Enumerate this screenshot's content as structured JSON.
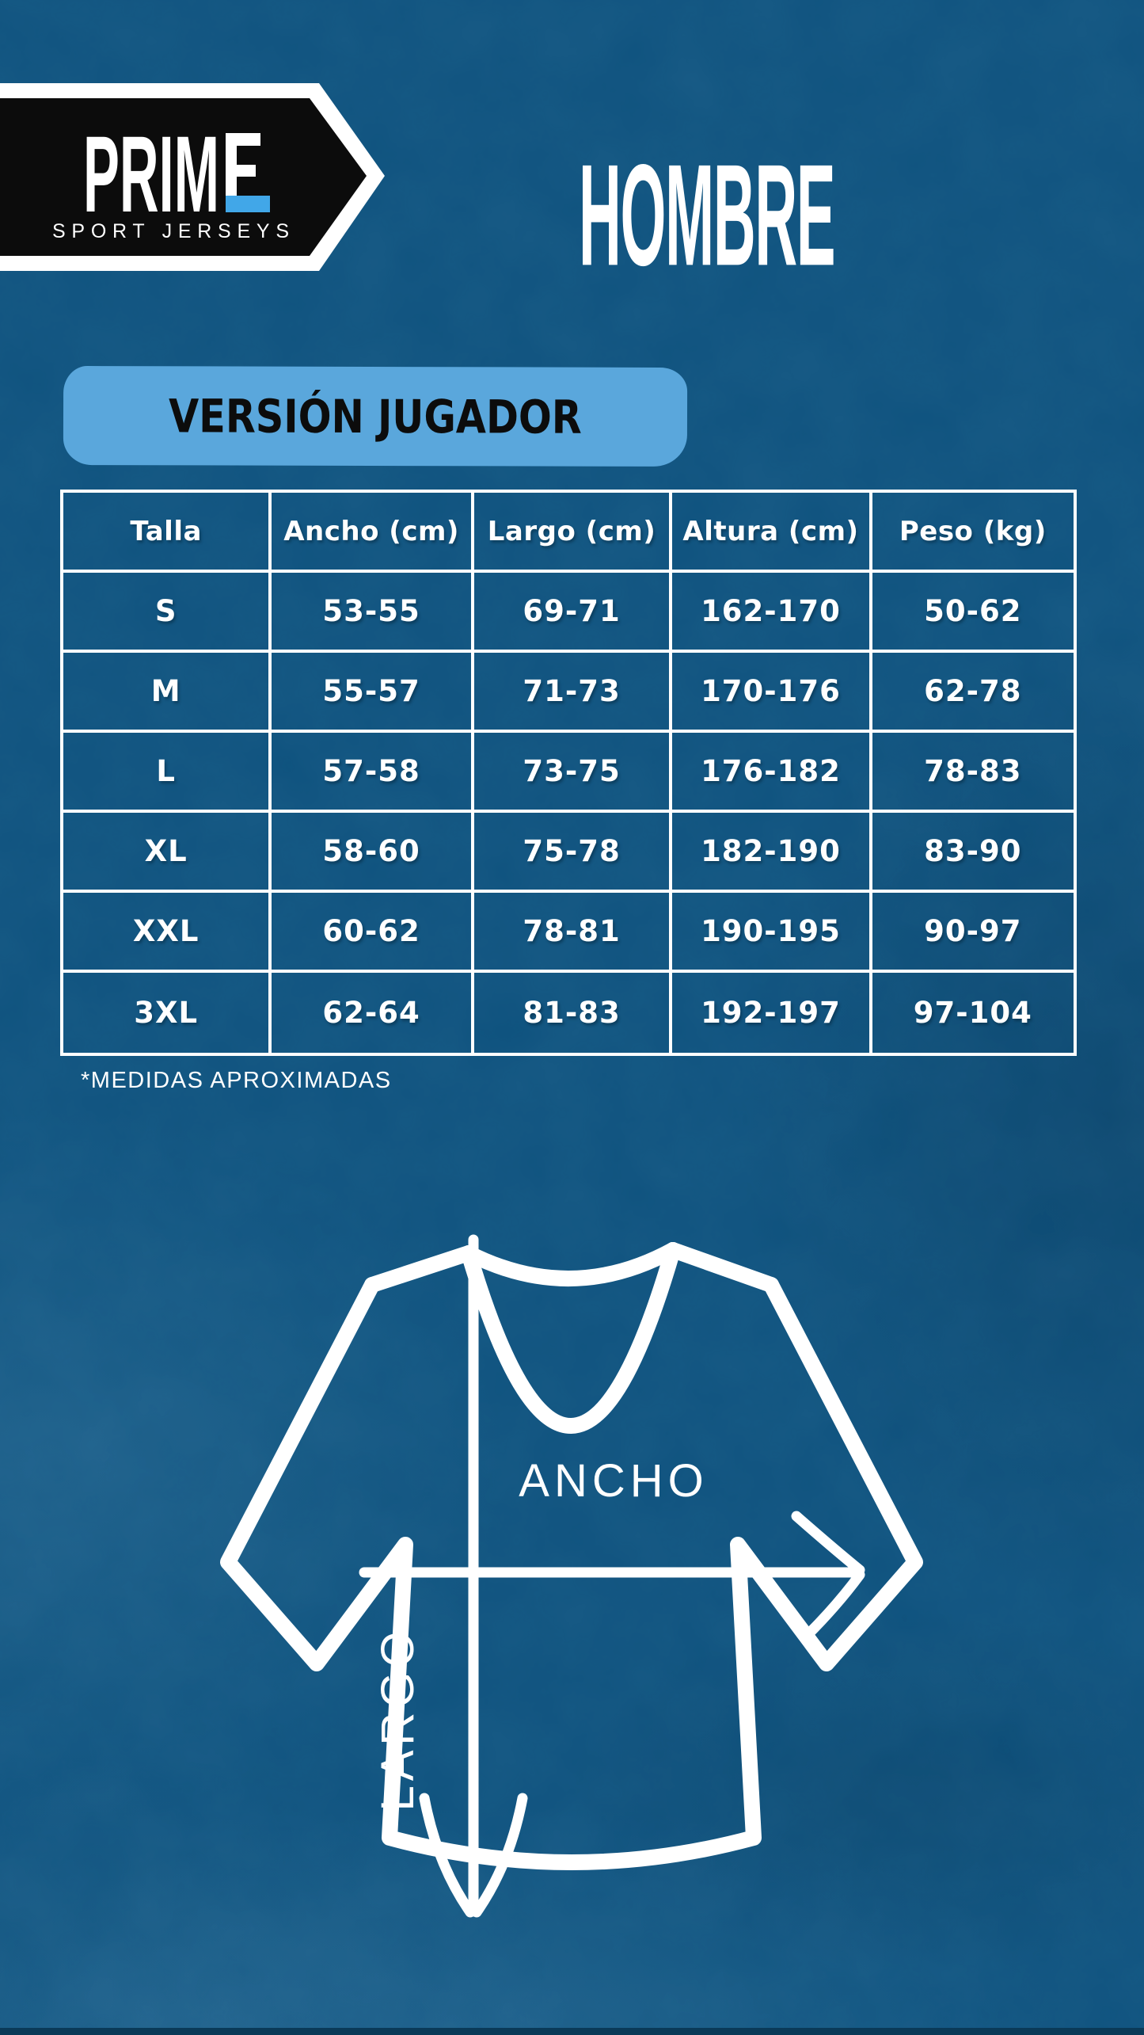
{
  "logo": {
    "text": "PRIME",
    "text_before_accent": "PRIM",
    "tagline": "SPORT JERSEYS"
  },
  "page_title": "HOMBRE",
  "section_banner": "VERSIÓN JUGADOR",
  "size_table": {
    "columns": [
      "Talla",
      "Ancho (cm)",
      "Largo (cm)",
      "Altura (cm)",
      "Peso (kg)"
    ],
    "rows": [
      [
        "S",
        "53-55",
        "69-71",
        "162-170",
        "50-62"
      ],
      [
        "M",
        "55-57",
        "71-73",
        "170-176",
        "62-78"
      ],
      [
        "L",
        "57-58",
        "73-75",
        "176-182",
        "78-83"
      ],
      [
        "XL",
        "58-60",
        "75-78",
        "182-190",
        "83-90"
      ],
      [
        "XXL",
        "60-62",
        "78-81",
        "190-195",
        "90-97"
      ],
      [
        "3XL",
        "62-64",
        "81-83",
        "192-197",
        "97-104"
      ]
    ]
  },
  "footnote": "*MEDIDAS APROXIMADAS",
  "diagram": {
    "width_label": "ANCHO",
    "length_label": "LARGO"
  },
  "colors": {
    "background": "#0e527e",
    "banner": "#5aa7dc",
    "logo_accent": "#41a7e8",
    "logo_background": "#0c0c0c",
    "text": "#ffffff",
    "table_border": "#ffffff"
  }
}
